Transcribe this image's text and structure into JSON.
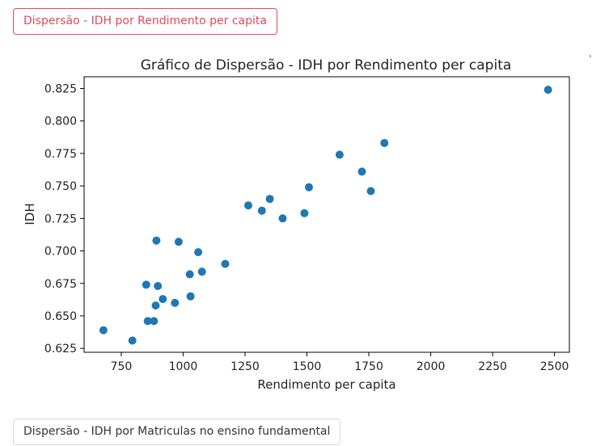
{
  "tabs": {
    "active_label": "Dispersão - IDH por Rendimento per capita",
    "next_label": "Dispersão - IDH por Matriculas no ensino fundamental"
  },
  "colors": {
    "accent": "#e24a5a",
    "point": "#1f77b4"
  },
  "chart_data": {
    "type": "scatter",
    "title": "Gráfico de Dispersão - IDH por Rendimento per capita",
    "xlabel": "Rendimento per capita",
    "ylabel": "IDH",
    "xlim": [
      600,
      2560
    ],
    "ylim": [
      0.622,
      0.834
    ],
    "xticks": [
      750,
      1000,
      1250,
      1500,
      1750,
      2000,
      2250,
      2500
    ],
    "xtick_labels": [
      "750",
      "1000",
      "1250",
      "1500",
      "1750",
      "2000",
      "2250",
      "2500"
    ],
    "yticks": [
      0.625,
      0.65,
      0.675,
      0.7,
      0.725,
      0.75,
      0.775,
      0.8,
      0.825
    ],
    "ytick_labels": [
      "0.625",
      "0.650",
      "0.675",
      "0.700",
      "0.725",
      "0.750",
      "0.775",
      "0.800",
      "0.825"
    ],
    "grid": false,
    "points": [
      {
        "x": 678,
        "y": 0.639
      },
      {
        "x": 795,
        "y": 0.631
      },
      {
        "x": 851,
        "y": 0.674
      },
      {
        "x": 857,
        "y": 0.646
      },
      {
        "x": 882,
        "y": 0.646
      },
      {
        "x": 889,
        "y": 0.658
      },
      {
        "x": 892,
        "y": 0.708
      },
      {
        "x": 898,
        "y": 0.673
      },
      {
        "x": 918,
        "y": 0.663
      },
      {
        "x": 967,
        "y": 0.66
      },
      {
        "x": 982,
        "y": 0.707
      },
      {
        "x": 1027,
        "y": 0.682
      },
      {
        "x": 1030,
        "y": 0.665
      },
      {
        "x": 1061,
        "y": 0.699
      },
      {
        "x": 1076,
        "y": 0.684
      },
      {
        "x": 1170,
        "y": 0.69
      },
      {
        "x": 1263,
        "y": 0.735
      },
      {
        "x": 1318,
        "y": 0.731
      },
      {
        "x": 1350,
        "y": 0.74
      },
      {
        "x": 1402,
        "y": 0.725
      },
      {
        "x": 1490,
        "y": 0.729
      },
      {
        "x": 1508,
        "y": 0.749
      },
      {
        "x": 1632,
        "y": 0.774
      },
      {
        "x": 1722,
        "y": 0.761
      },
      {
        "x": 1758,
        "y": 0.746
      },
      {
        "x": 1813,
        "y": 0.783
      },
      {
        "x": 2474,
        "y": 0.824
      }
    ]
  }
}
